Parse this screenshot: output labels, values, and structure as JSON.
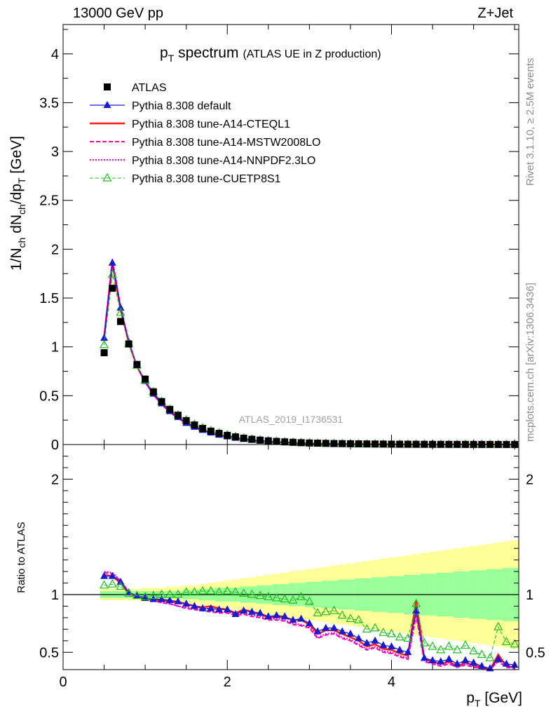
{
  "header": {
    "left": "13000 GeV pp",
    "right": "Z+Jet"
  },
  "side_labels": {
    "top": "Rivet 3.1.10, ≥ 2.5M events",
    "bottom": "mcplots.cern.ch [arXiv:1306.3436]"
  },
  "watermark": "ATLAS_2019_I1736531",
  "colors": {
    "data": "#000000",
    "default": "#1a1acc",
    "cteql1": "#ff1a1a",
    "mstw": "#ff00aa",
    "nnpdf": "#dd00dd",
    "cuetp8s1": "#22bb22",
    "band_inner": "#99ff99",
    "band_outer": "#ffff99"
  },
  "chart_data": [
    {
      "type": "line",
      "title_main": "p",
      "title_sub": "T",
      "title_rest": " spectrum",
      "title_small": "(ATLAS UE in Z production)",
      "ylabel": "1/N_ch dN_ch/dp_T [GeV]",
      "xlim": [
        0,
        5.55
      ],
      "ylim": [
        0,
        4.3
      ],
      "yticks": [
        "0",
        "0.5",
        "1",
        "1.5",
        "2",
        "2.5",
        "3",
        "3.5",
        "4"
      ],
      "x": [
        0.5,
        0.6,
        0.7,
        0.8,
        0.9,
        1.0,
        1.1,
        1.2,
        1.3,
        1.4,
        1.5,
        1.6,
        1.7,
        1.8,
        1.9,
        2.0,
        2.1,
        2.2,
        2.3,
        2.4,
        2.5,
        2.6,
        2.7,
        2.8,
        2.9,
        3.0,
        3.1,
        3.2,
        3.3,
        3.4,
        3.5,
        3.6,
        3.7,
        3.8,
        3.9,
        4.0,
        4.1,
        4.2,
        4.3,
        4.4,
        4.5,
        4.6,
        4.7,
        4.8,
        4.9,
        5.0,
        5.1,
        5.2,
        5.3,
        5.4,
        5.5
      ],
      "series": [
        {
          "name": "ATLAS",
          "values": [
            0.94,
            1.6,
            1.26,
            1.03,
            0.82,
            0.67,
            0.54,
            0.44,
            0.36,
            0.3,
            0.245,
            0.2,
            0.165,
            0.137,
            0.114,
            0.094,
            0.078,
            0.065,
            0.054,
            0.045,
            0.038,
            0.032,
            0.027,
            0.023,
            0.019,
            0.016,
            0.014,
            0.012,
            0.01,
            0.009,
            0.0078,
            0.0068,
            0.0059,
            0.0051,
            0.0045,
            0.0039,
            0.0034,
            0.003,
            0.0026,
            0.0023,
            0.002,
            0.0018,
            0.0016,
            0.0014,
            0.0012,
            0.0011,
            0.001,
            0.0009,
            0.0008,
            0.0007,
            0.0006
          ]
        },
        {
          "name": "Pythia 8.308 default",
          "values": [
            1.09,
            1.86,
            1.4,
            1.05,
            0.81,
            0.65,
            0.52,
            0.42,
            0.34,
            0.28,
            0.22,
            0.18,
            0.148,
            0.121,
            0.099,
            0.082,
            0.067,
            0.056,
            0.046,
            0.038,
            0.031,
            0.026,
            0.022,
            0.018,
            0.015,
            0.012,
            0.01,
            0.0085,
            0.0071,
            0.006,
            0.005,
            0.0042,
            0.0035,
            0.003,
            0.0025,
            0.0021,
            0.0018,
            0.0015,
            0.0013,
            0.0011,
            0.0009,
            0.0008,
            0.0007,
            0.0006,
            0.0005,
            0.00045,
            0.0004,
            0.00035,
            0.0003,
            0.00025,
            0.0002
          ]
        },
        {
          "name": "Pythia 8.308 tune-A14-CTEQL1",
          "values": [
            1.1,
            1.85,
            1.39,
            1.04,
            0.8,
            0.64,
            0.52,
            0.42,
            0.34,
            0.28,
            0.22,
            0.18,
            0.149,
            0.122,
            0.1,
            0.082,
            0.068,
            0.056,
            0.046,
            0.038,
            0.031,
            0.026,
            0.022,
            0.018,
            0.015,
            0.012,
            0.01,
            0.0085,
            0.0071,
            0.006,
            0.005,
            0.0042,
            0.0035,
            0.003,
            0.0025,
            0.0021,
            0.0018,
            0.0015,
            0.0013,
            0.0011,
            0.0009,
            0.0008,
            0.0007,
            0.0006,
            0.0005,
            0.00045,
            0.0004,
            0.00035,
            0.0003,
            0.00025,
            0.0002
          ]
        },
        {
          "name": "Pythia 8.308 tune-A14-MSTW2008LO",
          "values": [
            1.12,
            1.89,
            1.41,
            1.05,
            0.8,
            0.64,
            0.51,
            0.41,
            0.33,
            0.27,
            0.215,
            0.175,
            0.143,
            0.117,
            0.096,
            0.079,
            0.065,
            0.053,
            0.044,
            0.036,
            0.03,
            0.025,
            0.021,
            0.017,
            0.014,
            0.012,
            0.0098,
            0.0082,
            0.0068,
            0.0057,
            0.0048,
            0.004,
            0.0034,
            0.0028,
            0.0024,
            0.002,
            0.0017,
            0.0014,
            0.0012,
            0.001,
            0.0009,
            0.0008,
            0.0007,
            0.0006,
            0.0005,
            0.00045,
            0.0004,
            0.00035,
            0.0003,
            0.00025,
            0.0002
          ]
        },
        {
          "name": "Pythia 8.308 tune-A14-NNPDF2.3LO",
          "values": [
            1.12,
            1.9,
            1.41,
            1.05,
            0.8,
            0.64,
            0.51,
            0.41,
            0.33,
            0.27,
            0.217,
            0.176,
            0.144,
            0.118,
            0.097,
            0.08,
            0.066,
            0.054,
            0.045,
            0.037,
            0.031,
            0.025,
            0.021,
            0.018,
            0.015,
            0.012,
            0.01,
            0.0084,
            0.007,
            0.0058,
            0.0049,
            0.0041,
            0.0034,
            0.0029,
            0.0024,
            0.002,
            0.0017,
            0.0014,
            0.0012,
            0.001,
            0.0009,
            0.0008,
            0.0007,
            0.0006,
            0.0005,
            0.00045,
            0.0004,
            0.00035,
            0.0003,
            0.00025,
            0.0002
          ]
        },
        {
          "name": "Pythia 8.308 tune-CUETP8S1",
          "values": [
            1.02,
            1.74,
            1.35,
            1.03,
            0.81,
            0.66,
            0.54,
            0.44,
            0.36,
            0.3,
            0.25,
            0.205,
            0.17,
            0.141,
            0.117,
            0.097,
            0.08,
            0.066,
            0.055,
            0.046,
            0.038,
            0.032,
            0.027,
            0.022,
            0.019,
            0.016,
            0.013,
            0.011,
            0.0092,
            0.0078,
            0.0066,
            0.0056,
            0.0047,
            0.004,
            0.0034,
            0.0029,
            0.0025,
            0.0021,
            0.0018,
            0.0015,
            0.0013,
            0.0011,
            0.001,
            0.0009,
            0.0008,
            0.0007,
            0.0006,
            0.0005,
            0.00045,
            0.0004,
            0.00035
          ]
        }
      ],
      "legend_position": "top-left"
    },
    {
      "type": "line",
      "ylabel": "Ratio to ATLAS",
      "xlabel_main": "p",
      "xlabel_sub": "T",
      "xlabel_rest": " [GeV]",
      "xlim": [
        0,
        5.55
      ],
      "ylim": [
        0.35,
        2.3
      ],
      "xticks": [
        "0",
        "2",
        "4"
      ],
      "yticks": [
        "0.5",
        "1",
        "2"
      ],
      "x": [
        0.5,
        0.6,
        0.7,
        0.8,
        0.9,
        1.0,
        1.1,
        1.2,
        1.3,
        1.4,
        1.5,
        1.6,
        1.7,
        1.8,
        1.9,
        2.0,
        2.1,
        2.2,
        2.3,
        2.4,
        2.5,
        2.6,
        2.7,
        2.8,
        2.9,
        3.0,
        3.1,
        3.2,
        3.3,
        3.4,
        3.5,
        3.6,
        3.7,
        3.8,
        3.9,
        4.0,
        4.1,
        4.2,
        4.3,
        4.4,
        4.5,
        4.6,
        4.7,
        4.8,
        4.9,
        5.0,
        5.1,
        5.2,
        5.3,
        5.4,
        5.5
      ],
      "band_inner": [
        0.03,
        0.03,
        0.03,
        0.03,
        0.03,
        0.03,
        0.03,
        0.03,
        0.03,
        0.03,
        0.04,
        0.04,
        0.05,
        0.05,
        0.06,
        0.06,
        0.06,
        0.07,
        0.07,
        0.08,
        0.08,
        0.09,
        0.09,
        0.1,
        0.1,
        0.11,
        0.11,
        0.12,
        0.12,
        0.13,
        0.13,
        0.14,
        0.14,
        0.15,
        0.15,
        0.16,
        0.16,
        0.17,
        0.17,
        0.18,
        0.18,
        0.19,
        0.19,
        0.2,
        0.2,
        0.21,
        0.21,
        0.22,
        0.22,
        0.23,
        0.23
      ],
      "band_outer": [
        0.05,
        0.05,
        0.05,
        0.05,
        0.05,
        0.06,
        0.06,
        0.06,
        0.07,
        0.07,
        0.08,
        0.08,
        0.09,
        0.1,
        0.11,
        0.12,
        0.13,
        0.14,
        0.15,
        0.16,
        0.17,
        0.18,
        0.19,
        0.2,
        0.21,
        0.22,
        0.23,
        0.24,
        0.25,
        0.26,
        0.27,
        0.28,
        0.29,
        0.3,
        0.31,
        0.32,
        0.33,
        0.34,
        0.35,
        0.36,
        0.37,
        0.38,
        0.39,
        0.4,
        0.41,
        0.42,
        0.43,
        0.44,
        0.45,
        0.46,
        0.47
      ],
      "series": [
        {
          "name": "Pythia 8.308 default",
          "values": [
            1.16,
            1.16,
            1.11,
            1.02,
            0.99,
            0.97,
            0.96,
            0.96,
            0.95,
            0.94,
            0.92,
            0.9,
            0.88,
            0.88,
            0.87,
            0.87,
            0.83,
            0.86,
            0.85,
            0.84,
            0.81,
            0.82,
            0.81,
            0.78,
            0.79,
            0.75,
            0.68,
            0.71,
            0.71,
            0.68,
            0.66,
            0.62,
            0.58,
            0.6,
            0.56,
            0.55,
            0.52,
            0.5,
            0.86,
            0.45,
            0.43,
            0.42,
            0.44,
            0.4,
            0.43,
            0.41,
            0.38,
            0.36,
            0.44,
            0.4,
            0.39
          ]
        },
        {
          "name": "Pythia 8.308 tune-A14-CTEQL1",
          "values": [
            1.17,
            1.16,
            1.1,
            1.01,
            0.98,
            0.96,
            0.96,
            0.95,
            0.94,
            0.93,
            0.92,
            0.9,
            0.89,
            0.9,
            0.88,
            0.87,
            0.84,
            0.87,
            0.85,
            0.83,
            0.8,
            0.81,
            0.8,
            0.78,
            0.78,
            0.74,
            0.66,
            0.69,
            0.69,
            0.66,
            0.63,
            0.6,
            0.55,
            0.57,
            0.53,
            0.52,
            0.49,
            0.47,
            0.95,
            0.44,
            0.42,
            0.4,
            0.42,
            0.38,
            0.41,
            0.39,
            0.37,
            0.35,
            0.48,
            0.38,
            0.37
          ]
        },
        {
          "name": "Pythia 8.308 tune-A14-MSTW2008LO",
          "values": [
            1.19,
            1.18,
            1.12,
            1.02,
            0.98,
            0.96,
            0.95,
            0.93,
            0.92,
            0.9,
            0.88,
            0.87,
            0.86,
            0.85,
            0.84,
            0.84,
            0.82,
            0.83,
            0.81,
            0.8,
            0.78,
            0.78,
            0.77,
            0.74,
            0.73,
            0.71,
            0.62,
            0.65,
            0.66,
            0.62,
            0.6,
            0.56,
            0.52,
            0.54,
            0.5,
            0.49,
            0.46,
            0.44,
            0.82,
            0.42,
            0.4,
            0.38,
            0.4,
            0.37,
            0.39,
            0.37,
            0.36,
            0.35,
            0.42,
            0.37,
            0.36
          ]
        },
        {
          "name": "Pythia 8.308 tune-A14-NNPDF2.3LO",
          "values": [
            1.2,
            1.19,
            1.12,
            1.02,
            0.98,
            0.96,
            0.95,
            0.93,
            0.92,
            0.9,
            0.89,
            0.88,
            0.87,
            0.86,
            0.85,
            0.85,
            0.83,
            0.84,
            0.82,
            0.81,
            0.79,
            0.79,
            0.78,
            0.75,
            0.74,
            0.72,
            0.63,
            0.66,
            0.67,
            0.63,
            0.61,
            0.57,
            0.53,
            0.55,
            0.51,
            0.5,
            0.47,
            0.45,
            0.84,
            0.43,
            0.41,
            0.39,
            0.41,
            0.38,
            0.4,
            0.38,
            0.36,
            0.35,
            0.43,
            0.38,
            0.37
          ]
        },
        {
          "name": "Pythia 8.308 tune-CUETP8S1",
          "values": [
            1.08,
            1.09,
            1.07,
            1.01,
            0.99,
            0.98,
            0.99,
            1.0,
            1.0,
            1.0,
            1.02,
            1.02,
            1.03,
            1.03,
            1.02,
            1.03,
            1.02,
            1.01,
            1.0,
            0.99,
            0.98,
            0.97,
            0.96,
            0.95,
            0.98,
            0.94,
            0.84,
            0.85,
            0.86,
            0.82,
            0.79,
            0.78,
            0.7,
            0.71,
            0.67,
            0.66,
            0.63,
            0.62,
            0.92,
            0.58,
            0.55,
            0.52,
            0.55,
            0.52,
            0.56,
            0.51,
            0.48,
            0.45,
            0.72,
            0.59,
            0.57
          ]
        }
      ]
    }
  ]
}
